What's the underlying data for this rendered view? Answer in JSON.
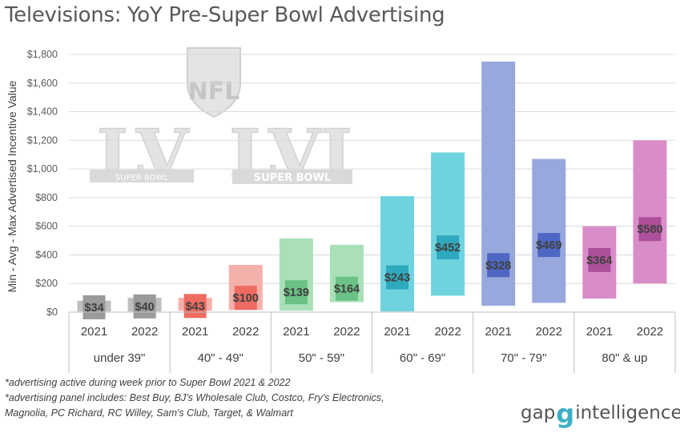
{
  "chart_data": {
    "type": "bar",
    "title": "Televisions: YoY Pre-Super Bowl Advertising",
    "ylabel": "Min - Avg - Max Advertised Incentive Value",
    "xlabel": "",
    "ylim": [
      0,
      1800
    ],
    "yticks": [
      0,
      200,
      400,
      600,
      800,
      1000,
      1200,
      1400,
      1600,
      1800
    ],
    "ytick_labels": [
      "$0",
      "$200",
      "$400",
      "$600",
      "$800",
      "$1,000",
      "$1,200",
      "$1,400",
      "$1,600",
      "$1,800"
    ],
    "grid": true,
    "groups": [
      {
        "label": "under 39\"",
        "bars": [
          {
            "year": "2021",
            "min": 5,
            "max": 80,
            "avg": 34,
            "avg_label": "$34",
            "color": "#bfbfbf",
            "avg_color": "#9a9a9a"
          },
          {
            "year": "2022",
            "min": 5,
            "max": 100,
            "avg": 40,
            "avg_label": "$40",
            "color": "#bfbfbf",
            "avg_color": "#9a9a9a"
          }
        ]
      },
      {
        "label": "40\" - 49\"",
        "bars": [
          {
            "year": "2021",
            "min": 10,
            "max": 100,
            "avg": 43,
            "avg_label": "$43",
            "color": "#f4b0aa",
            "avg_color": "#ee6b62"
          },
          {
            "year": "2022",
            "min": 15,
            "max": 330,
            "avg": 100,
            "avg_label": "$100",
            "color": "#f4b0aa",
            "avg_color": "#ee6b62"
          }
        ]
      },
      {
        "label": "50\" - 59\"",
        "bars": [
          {
            "year": "2021",
            "min": 10,
            "max": 515,
            "avg": 139,
            "avg_label": "$139",
            "color": "#a9e0b8",
            "avg_color": "#6cc184"
          },
          {
            "year": "2022",
            "min": 70,
            "max": 470,
            "avg": 164,
            "avg_label": "$164",
            "color": "#a9e0b8",
            "avg_color": "#6cc184"
          }
        ]
      },
      {
        "label": "60\" - 69\"",
        "bars": [
          {
            "year": "2021",
            "min": 5,
            "max": 810,
            "avg": 243,
            "avg_label": "$243",
            "color": "#6fd3df",
            "avg_color": "#2fa9be"
          },
          {
            "year": "2022",
            "min": 115,
            "max": 1115,
            "avg": 452,
            "avg_label": "$452",
            "color": "#6fd3df",
            "avg_color": "#2fa9be"
          }
        ]
      },
      {
        "label": "70\" - 79\"",
        "bars": [
          {
            "year": "2021",
            "min": 45,
            "max": 1750,
            "avg": 328,
            "avg_label": "$328",
            "color": "#98a8dc",
            "avg_color": "#4f67c4"
          },
          {
            "year": "2022",
            "min": 65,
            "max": 1070,
            "avg": 469,
            "avg_label": "$469",
            "color": "#98a8dc",
            "avg_color": "#4f67c4"
          }
        ]
      },
      {
        "label": "80\" & up",
        "bars": [
          {
            "year": "2021",
            "min": 95,
            "max": 600,
            "avg": 364,
            "avg_label": "$364",
            "color": "#d98dc8",
            "avg_color": "#ad4f9a"
          },
          {
            "year": "2022",
            "min": 200,
            "max": 1200,
            "avg": 580,
            "avg_label": "$580",
            "color": "#d98dc8",
            "avg_color": "#ad4f9a"
          }
        ]
      }
    ]
  },
  "footnotes": [
    "*advertising active during week prior to Super Bowl 2021 & 2022",
    "*advertising panel includes: Best Buy, BJ's Wholesale Club, Costco, Fry's Electronics,",
    "Magnolia, PC Richard, RC Willey, Sam's Club, Target, & Walmart"
  ],
  "brand": {
    "left": "gap",
    "mark": "g",
    "right": "intelligence"
  },
  "watermark": {
    "nfl": "NFL",
    "lv": "LV",
    "lvi": "LVI",
    "super_bowl": "SUPER BOWL"
  }
}
